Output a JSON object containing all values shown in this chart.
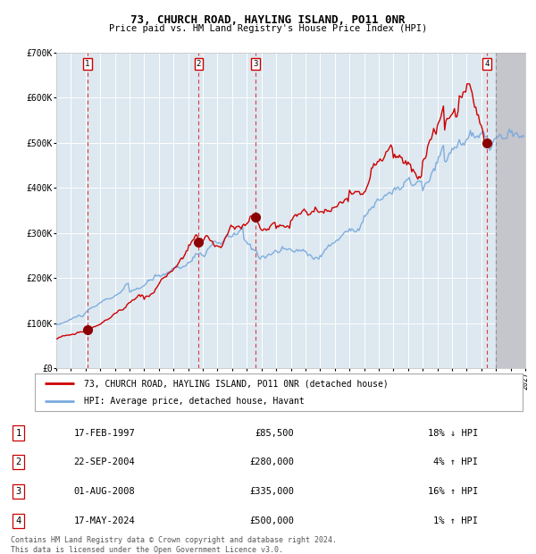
{
  "title": "73, CHURCH ROAD, HAYLING ISLAND, PO11 0NR",
  "subtitle": "Price paid vs. HM Land Registry's House Price Index (HPI)",
  "sale_prices": [
    85500,
    280000,
    335000,
    500000
  ],
  "sale_labels": [
    "1",
    "2",
    "3",
    "4"
  ],
  "sale_hpi_diff": [
    "18% ↓ HPI",
    "4% ↑ HPI",
    "16% ↑ HPI",
    "1% ↑ HPI"
  ],
  "sale_date_labels": [
    "17-FEB-1997",
    "22-SEP-2004",
    "01-AUG-2008",
    "17-MAY-2024"
  ],
  "sale_price_labels": [
    "£85,500",
    "£280,000",
    "£335,000",
    "£500,000"
  ],
  "sale_year_nums": [
    1997.12,
    2004.72,
    2008.58,
    2024.37
  ],
  "xmin": 1995.0,
  "xmax": 2027.0,
  "ymin": 0,
  "ymax": 700000,
  "yticks": [
    0,
    100000,
    200000,
    300000,
    400000,
    500000,
    600000,
    700000
  ],
  "ytick_labels": [
    "£0",
    "£100K",
    "£200K",
    "£300K",
    "£400K",
    "£500K",
    "£600K",
    "£700K"
  ],
  "legend_line1": "73, CHURCH ROAD, HAYLING ISLAND, PO11 0NR (detached house)",
  "legend_line2": "HPI: Average price, detached house, Havant",
  "footer1": "Contains HM Land Registry data © Crown copyright and database right 2024.",
  "footer2": "This data is licensed under the Open Government Licence v3.0.",
  "hpi_color": "#7aaadd",
  "price_color": "#cc0000",
  "future_shade_start": 2025.0,
  "plot_bg": "#dde8f0"
}
